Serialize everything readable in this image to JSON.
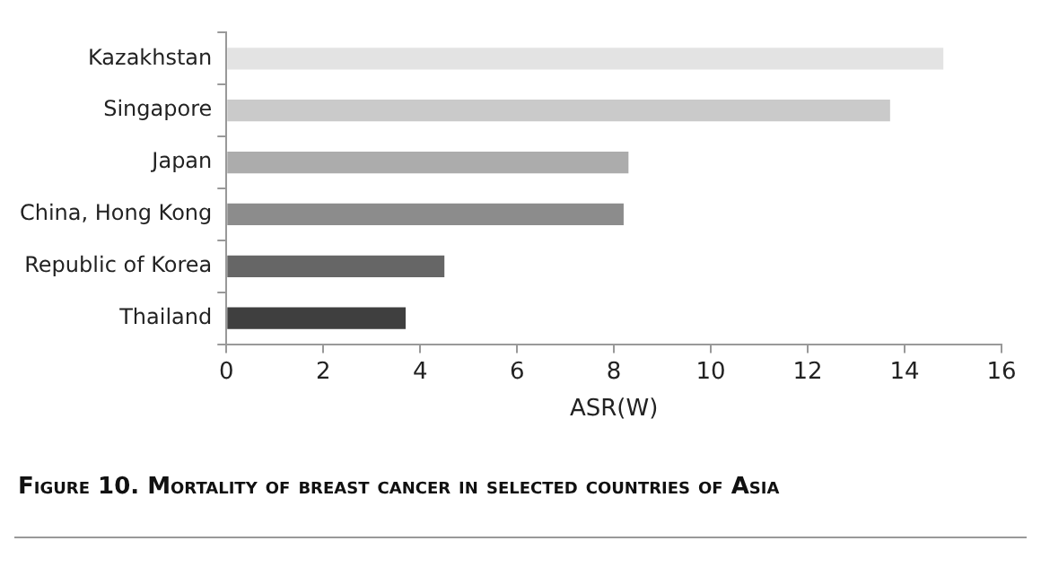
{
  "chart_data": {
    "type": "bar",
    "orientation": "horizontal",
    "title": "Figure 10. Mortality of breast cancer in selected countries of Asia",
    "xlabel": "ASR(W)",
    "categories": [
      "Kazakhstan",
      "Singapore",
      "Japan",
      "China, Hong Kong",
      "Republic of Korea",
      "Thailand"
    ],
    "values": [
      14.8,
      13.7,
      8.3,
      8.2,
      4.5,
      3.7
    ],
    "colors": [
      "#e3e3e3",
      "#cacaca",
      "#acacac",
      "#8c8c8c",
      "#666666",
      "#3f3f3f"
    ],
    "xlim": [
      0,
      16
    ],
    "xticks": [
      0,
      2,
      4,
      6,
      8,
      10,
      12,
      14,
      16
    ],
    "grid": false,
    "legend": false
  }
}
